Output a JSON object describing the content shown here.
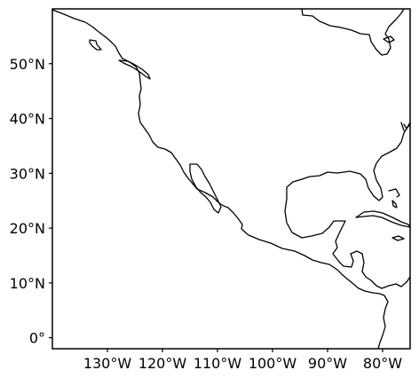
{
  "map": {
    "projection": "PlateCarree",
    "extent": {
      "lon_min": -140,
      "lon_max": -75,
      "lat_min": -2,
      "lat_max": 60
    },
    "x_ticks": [
      {
        "lon": -130,
        "label": "130°W"
      },
      {
        "lon": -120,
        "label": "120°W"
      },
      {
        "lon": -110,
        "label": "110°W"
      },
      {
        "lon": -100,
        "label": "100°W"
      },
      {
        "lon": -90,
        "label": "90°W"
      },
      {
        "lon": -80,
        "label": "80°W"
      }
    ],
    "y_ticks": [
      {
        "lat": 50,
        "label": "50°N"
      },
      {
        "lat": 40,
        "label": "40°N"
      },
      {
        "lat": 30,
        "label": "30°N"
      },
      {
        "lat": 20,
        "label": "20°N"
      },
      {
        "lat": 10,
        "label": "10°N"
      },
      {
        "lat": 0,
        "label": "0°"
      }
    ],
    "line_color": "#000000",
    "background": "#ffffff"
  }
}
